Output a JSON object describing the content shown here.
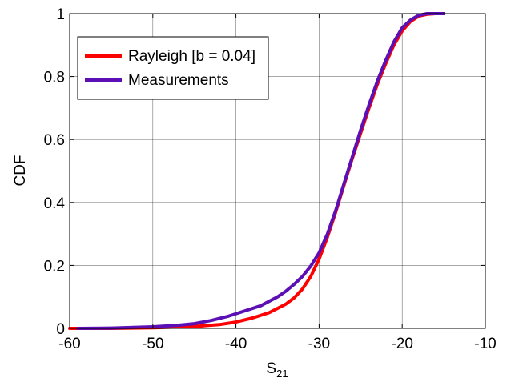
{
  "chart_data": {
    "type": "line",
    "title": "",
    "xlabel": "S",
    "xlabel_sub": "21",
    "ylabel": "CDF",
    "xlim": [
      -60,
      -10
    ],
    "ylim": [
      0,
      1
    ],
    "xticks": [
      -60,
      -50,
      -40,
      -30,
      -20,
      -10
    ],
    "yticks": [
      0,
      0.2,
      0.4,
      0.6,
      0.8,
      1
    ],
    "xtick_labels": [
      "-60",
      "-50",
      "-40",
      "-30",
      "-20",
      "-10"
    ],
    "ytick_labels": [
      "0",
      "0.2",
      "0.4",
      "0.6",
      "0.8",
      "1"
    ],
    "grid": true,
    "legend_position": "top-left",
    "series": [
      {
        "name": "Rayleigh [b = 0.04]",
        "color": "#ff0000",
        "points": [
          [
            -60,
            0.0
          ],
          [
            -55,
            0.0
          ],
          [
            -50,
            0.002
          ],
          [
            -45,
            0.006
          ],
          [
            -42,
            0.012
          ],
          [
            -40,
            0.02
          ],
          [
            -38,
            0.033
          ],
          [
            -36,
            0.05
          ],
          [
            -34,
            0.077
          ],
          [
            -33,
            0.097
          ],
          [
            -32,
            0.125
          ],
          [
            -31,
            0.165
          ],
          [
            -30,
            0.22
          ],
          [
            -29,
            0.29
          ],
          [
            -28,
            0.37
          ],
          [
            -27,
            0.455
          ],
          [
            -26,
            0.54
          ],
          [
            -25,
            0.62
          ],
          [
            -24,
            0.7
          ],
          [
            -23,
            0.775
          ],
          [
            -22,
            0.84
          ],
          [
            -21,
            0.9
          ],
          [
            -20,
            0.945
          ],
          [
            -19,
            0.975
          ],
          [
            -18,
            0.992
          ],
          [
            -17,
            0.998
          ],
          [
            -16,
            1.0
          ],
          [
            -15,
            1.0
          ]
        ]
      },
      {
        "name": "Measurements",
        "color": "#5b0fb4",
        "points": [
          [
            -59,
            0.0
          ],
          [
            -55,
            0.001
          ],
          [
            -50,
            0.005
          ],
          [
            -47,
            0.01
          ],
          [
            -45,
            0.015
          ],
          [
            -43,
            0.025
          ],
          [
            -41,
            0.038
          ],
          [
            -39,
            0.055
          ],
          [
            -37,
            0.072
          ],
          [
            -35,
            0.1
          ],
          [
            -34,
            0.118
          ],
          [
            -33,
            0.14
          ],
          [
            -32,
            0.165
          ],
          [
            -31,
            0.198
          ],
          [
            -30,
            0.24
          ],
          [
            -29,
            0.3
          ],
          [
            -28,
            0.375
          ],
          [
            -27,
            0.46
          ],
          [
            -26,
            0.545
          ],
          [
            -25,
            0.63
          ],
          [
            -24,
            0.71
          ],
          [
            -23,
            0.785
          ],
          [
            -22,
            0.85
          ],
          [
            -21,
            0.91
          ],
          [
            -20,
            0.955
          ],
          [
            -19,
            0.98
          ],
          [
            -18,
            0.995
          ],
          [
            -17,
            1.0
          ],
          [
            -15,
            1.0
          ]
        ]
      }
    ]
  }
}
